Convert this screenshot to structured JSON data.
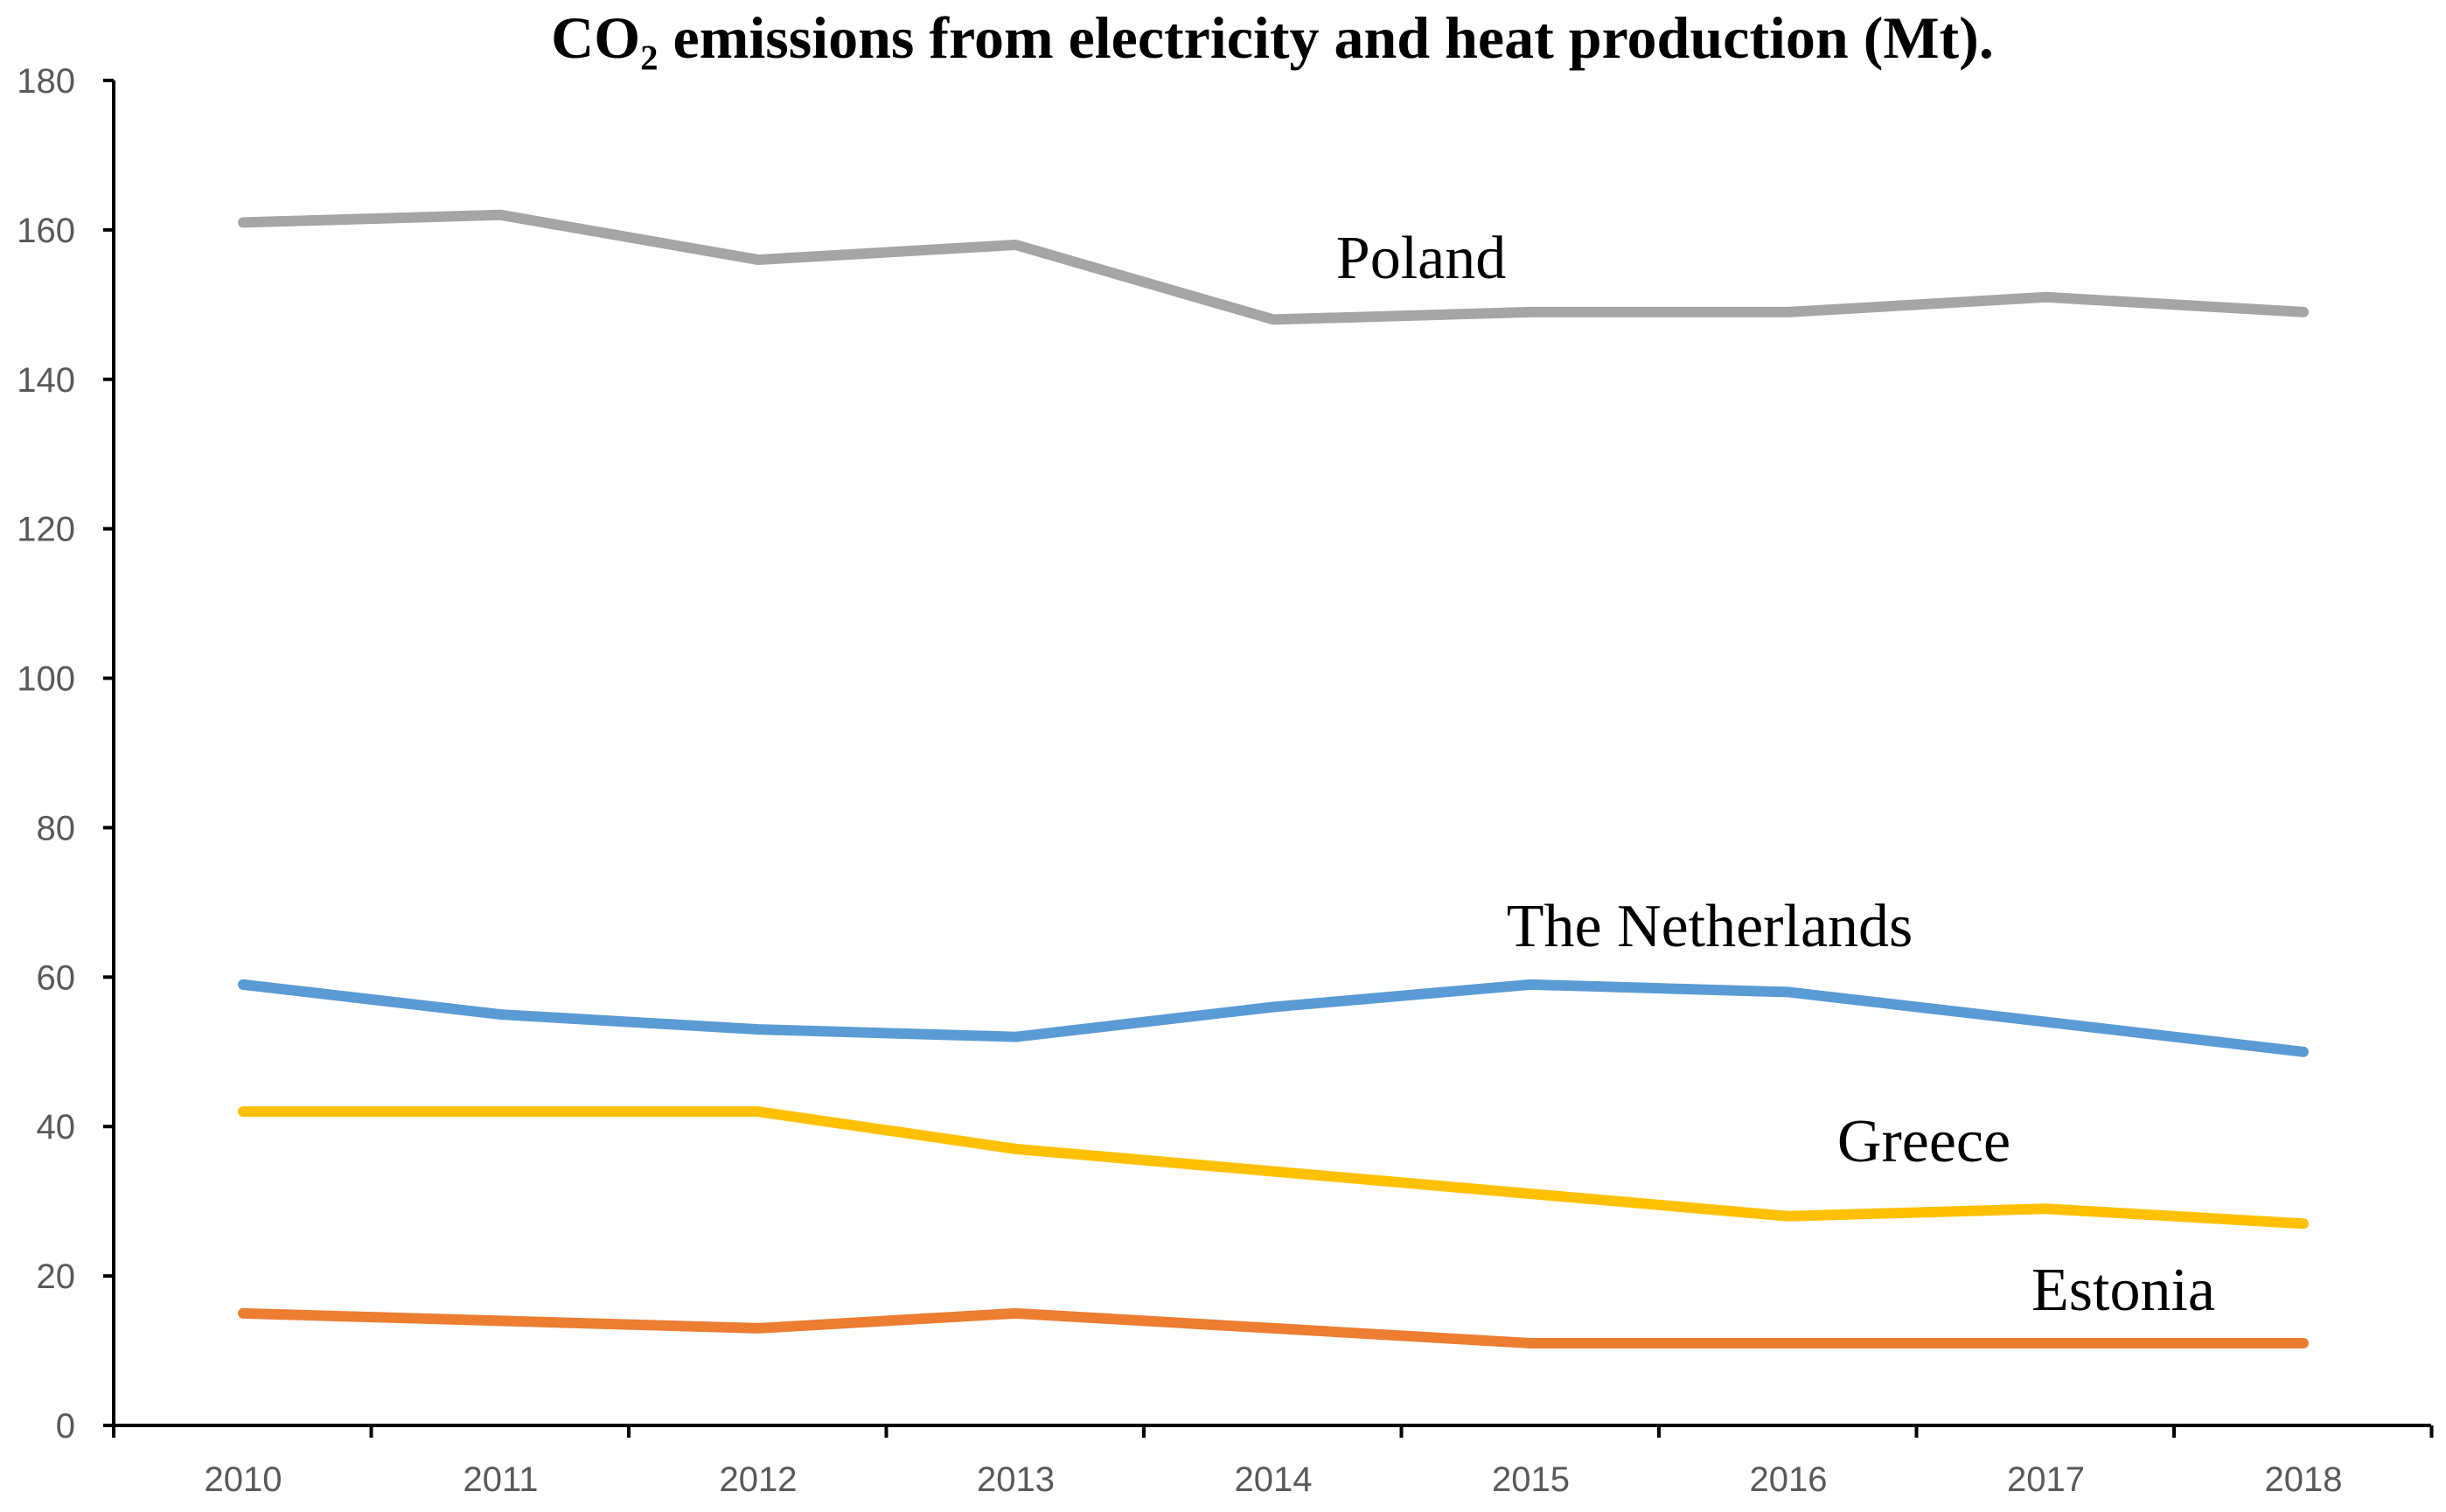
{
  "chart_data": {
    "type": "line",
    "title": "CO₂ emissions from electricity and heat production (Mt).",
    "xlabel": "",
    "ylabel": "",
    "categories": [
      "2010",
      "2011",
      "2012",
      "2013",
      "2014",
      "2015",
      "2016",
      "2017",
      "2018"
    ],
    "ylim": [
      0,
      180
    ],
    "yticks": [
      0,
      20,
      40,
      60,
      80,
      100,
      120,
      140,
      160,
      180
    ],
    "grid": false,
    "legend": "inline labels",
    "series": [
      {
        "name": "Poland",
        "color": "#A5A5A5",
        "values": [
          161,
          162,
          156,
          158,
          148,
          149,
          149,
          151,
          149
        ]
      },
      {
        "name": "The Netherlands",
        "color": "#5B9BD5",
        "values": [
          59,
          55,
          53,
          52,
          56,
          59,
          58,
          54,
          50
        ]
      },
      {
        "name": "Greece",
        "color": "#FFC000",
        "values": [
          42,
          42,
          42,
          37,
          34,
          31,
          28,
          29,
          27
        ]
      },
      {
        "name": "Estonia",
        "color": "#ED7D31",
        "values": [
          15,
          14,
          13,
          15,
          13,
          11,
          11,
          11,
          11
        ]
      }
    ]
  }
}
